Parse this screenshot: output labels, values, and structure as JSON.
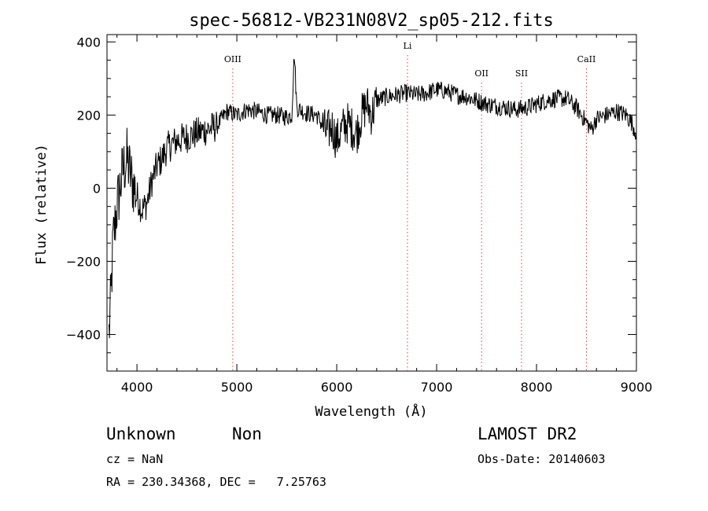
{
  "chart_data": {
    "type": "line",
    "title": "spec-56812-VB231N08V2_sp05-212.fits",
    "xlabel": "Wavelength (Å)",
    "ylabel": "Flux (relative)",
    "xlim": [
      3700,
      9000
    ],
    "ylim": [
      -500,
      420
    ],
    "x_ticks": [
      4000,
      5000,
      6000,
      7000,
      8000,
      9000
    ],
    "x_tick_labels": [
      "4000",
      "5000",
      "6000",
      "7000",
      "8000",
      "9000"
    ],
    "y_ticks": [
      -400,
      -200,
      0,
      200,
      400
    ],
    "y_tick_labels": [
      "−400",
      "−200",
      "0",
      "200",
      "400"
    ],
    "grid": false,
    "line_color": "#000000",
    "line_marker_color": "#e0403c",
    "line_markers": [
      {
        "label": "OIII",
        "x": 4959
      },
      {
        "label": "Li",
        "x": 6708
      },
      {
        "label": "OII",
        "x": 7450
      },
      {
        "label": "SII",
        "x": 7850
      },
      {
        "label": "CaII",
        "x": 8500
      }
    ],
    "series": [
      {
        "x": [
          3720,
          3740,
          3760,
          3780,
          3800,
          3830,
          3860,
          3900,
          3950,
          4000,
          4050,
          4100,
          4150,
          4200,
          4250,
          4300,
          4400,
          4500,
          4600,
          4700,
          4800,
          4850,
          4900,
          5000,
          5100,
          5200,
          5300,
          5400,
          5500,
          5550,
          5575,
          5600,
          5700,
          5800,
          5900,
          5950,
          6000,
          6050,
          6100,
          6200,
          6250,
          6300,
          6350,
          6400,
          6500,
          6600,
          6700,
          6800,
          6900,
          7000,
          7100,
          7200,
          7300,
          7400,
          7500,
          7600,
          7700,
          7800,
          7900,
          8000,
          8100,
          8200,
          8300,
          8400,
          8500,
          8550,
          8600,
          8700,
          8800,
          8900,
          8950,
          9000
        ],
        "y": [
          -400,
          -300,
          -150,
          -100,
          -50,
          0,
          50,
          80,
          20,
          -20,
          -60,
          -40,
          20,
          60,
          80,
          110,
          130,
          140,
          150,
          160,
          170,
          190,
          210,
          200,
          215,
          210,
          200,
          200,
          195,
          200,
          370,
          220,
          205,
          200,
          150,
          170,
          130,
          160,
          180,
          150,
          200,
          230,
          200,
          240,
          250,
          255,
          260,
          255,
          260,
          270,
          265,
          255,
          250,
          240,
          230,
          225,
          220,
          215,
          220,
          230,
          240,
          245,
          245,
          220,
          180,
          160,
          190,
          200,
          210,
          200,
          180,
          150
        ]
      }
    ]
  },
  "info": {
    "object_type": "Unknown",
    "subclass": "Non",
    "survey": "LAMOST DR2",
    "cz": "cz = NaN",
    "obs_date": "Obs-Date: 20140603",
    "coords": "RA = 230.34368, DEC =   7.25763"
  }
}
